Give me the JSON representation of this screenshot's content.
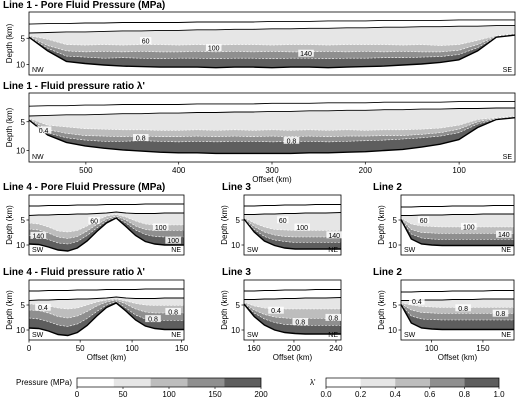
{
  "figure": {
    "colors": {
      "c0": "#ffffff",
      "c1": "#e6e6e6",
      "c2": "#bdbdbd",
      "c3": "#8f8f8f",
      "c4": "#5e5e5e"
    }
  },
  "chart_data": [
    {
      "id": "l1p",
      "type": "heatmap",
      "title": "Line 1 - Pore Fluid Pressure (MPa)",
      "ylabel": "Depth (km)",
      "ylim": [
        0,
        12
      ],
      "yticks": [
        "5",
        "10"
      ],
      "x_reversed": true,
      "xlim": [
        560,
        40
      ],
      "corner_left": "NW",
      "corner_right": "SE",
      "contour_labels": [
        "60",
        "100",
        "140"
      ],
      "boundaries": {
        "x": [
          560,
          540,
          520,
          500,
          480,
          460,
          440,
          420,
          400,
          380,
          360,
          340,
          320,
          300,
          280,
          260,
          240,
          220,
          200,
          180,
          160,
          140,
          120,
          100,
          80,
          60,
          40
        ],
        "top1": [
          2.3,
          2.2,
          2.2,
          2.1,
          2.1,
          2.0,
          2.0,
          2.0,
          2.0,
          1.9,
          1.9,
          1.9,
          1.9,
          1.8,
          1.8,
          1.8,
          1.7,
          1.7,
          1.7,
          1.6,
          1.6,
          1.6,
          1.6,
          1.5,
          1.5,
          1.5,
          1.5
        ],
        "top2": [
          4.0,
          3.9,
          3.8,
          3.8,
          3.7,
          3.6,
          3.6,
          3.5,
          3.5,
          3.4,
          3.4,
          3.3,
          3.3,
          3.2,
          3.2,
          3.1,
          3.1,
          3.0,
          3.0,
          2.9,
          2.9,
          2.8,
          2.8,
          2.7,
          2.7,
          2.6,
          2.6
        ],
        "b1": [
          4.5,
          5.2,
          6.2,
          6.3,
          6.2,
          6.3,
          6.2,
          6.2,
          6.3,
          6.2,
          6.3,
          6.2,
          6.2,
          6.3,
          6.2,
          6.2,
          6.3,
          6.2,
          6.2,
          6.2,
          6.3,
          6.2,
          6.4,
          6.2,
          5.4,
          4.5,
          4.1
        ],
        "b2": [
          4.6,
          6.4,
          7.4,
          7.6,
          7.5,
          7.6,
          7.5,
          7.6,
          7.6,
          7.5,
          7.6,
          7.5,
          7.6,
          7.5,
          7.6,
          7.6,
          7.5,
          7.6,
          7.5,
          7.6,
          7.5,
          7.6,
          7.6,
          7.3,
          6.2,
          4.6,
          4.2
        ],
        "b3": [
          4.7,
          6.9,
          8.4,
          8.6,
          8.8,
          8.7,
          8.8,
          8.9,
          8.8,
          8.8,
          8.9,
          8.8,
          8.8,
          8.9,
          8.8,
          8.8,
          8.9,
          8.8,
          8.8,
          8.7,
          8.7,
          8.6,
          8.5,
          8.1,
          6.8,
          4.7,
          4.3
        ],
        "bottom": [
          4.8,
          7.4,
          9.4,
          9.8,
          10.1,
          10.3,
          10.4,
          10.5,
          10.5,
          10.5,
          10.6,
          10.5,
          10.5,
          10.6,
          10.5,
          10.5,
          10.6,
          10.5,
          10.4,
          10.3,
          10.1,
          9.9,
          9.6,
          9.1,
          7.4,
          4.8,
          4.4
        ]
      }
    },
    {
      "id": "l1r",
      "type": "heatmap",
      "title": "Line 1 - Fluid pressure ratio λ'",
      "ylabel": "Depth (km)",
      "ylim": [
        0,
        12
      ],
      "yticks": [
        "5",
        "10"
      ],
      "xlabel": "Offset (km)",
      "x_reversed": true,
      "xlim": [
        560,
        40
      ],
      "xticks": [
        "500",
        "400",
        "300",
        "200",
        "100"
      ],
      "corner_left": "NW",
      "corner_right": "SE",
      "contour_labels": [
        "0.4",
        "0.8",
        "0.8"
      ],
      "boundaries": {
        "x": [
          560,
          540,
          520,
          500,
          480,
          460,
          440,
          420,
          400,
          380,
          360,
          340,
          320,
          300,
          280,
          260,
          240,
          220,
          200,
          180,
          160,
          140,
          120,
          100,
          80,
          60,
          40
        ],
        "top1": [
          2.3,
          2.2,
          2.2,
          2.1,
          2.1,
          2.0,
          2.0,
          2.0,
          2.0,
          1.9,
          1.9,
          1.9,
          1.9,
          1.8,
          1.8,
          1.8,
          1.7,
          1.7,
          1.7,
          1.6,
          1.6,
          1.6,
          1.6,
          1.5,
          1.5,
          1.5,
          1.5
        ],
        "top2": [
          4.0,
          3.9,
          3.8,
          3.8,
          3.7,
          3.6,
          3.6,
          3.5,
          3.5,
          3.4,
          3.4,
          3.3,
          3.3,
          3.2,
          3.2,
          3.1,
          3.1,
          3.0,
          3.0,
          2.9,
          2.9,
          2.8,
          2.8,
          2.7,
          2.7,
          2.6,
          2.6
        ],
        "b1": [
          4.4,
          5.6,
          5.9,
          6.2,
          6.3,
          6.4,
          6.4,
          6.5,
          6.5,
          6.4,
          6.5,
          6.4,
          6.5,
          6.4,
          6.5,
          6.4,
          6.5,
          6.4,
          6.5,
          6.4,
          6.4,
          6.3,
          6.1,
          5.6,
          4.6,
          4.3,
          4.0
        ],
        "b2": [
          4.5,
          6.4,
          7.0,
          7.4,
          7.5,
          7.6,
          7.5,
          7.6,
          7.6,
          7.5,
          7.6,
          7.5,
          7.6,
          7.5,
          7.6,
          7.5,
          7.6,
          7.5,
          7.5,
          7.4,
          7.4,
          7.2,
          6.9,
          6.3,
          5.0,
          4.4,
          4.1
        ],
        "b3": [
          4.6,
          6.9,
          7.8,
          8.2,
          8.4,
          8.4,
          8.3,
          8.4,
          8.5,
          8.4,
          8.5,
          8.4,
          8.4,
          8.5,
          8.4,
          8.4,
          8.5,
          8.4,
          8.3,
          8.2,
          8.0,
          7.8,
          7.5,
          6.9,
          5.4,
          4.5,
          4.2
        ],
        "bottom": [
          4.7,
          7.3,
          8.6,
          9.2,
          9.6,
          9.9,
          10.1,
          10.3,
          10.4,
          10.4,
          10.5,
          10.5,
          10.5,
          10.5,
          10.5,
          10.4,
          10.4,
          10.3,
          10.2,
          10.0,
          9.8,
          9.4,
          8.9,
          8.1,
          6.0,
          4.6,
          4.3
        ]
      }
    },
    {
      "id": "l4p",
      "type": "heatmap",
      "title": "Line 4 - Pore Fluid Pressure (MPa)",
      "ylabel": "Depth (km)",
      "ylim": [
        0,
        12
      ],
      "yticks": [
        "5",
        "10"
      ],
      "xlim": [
        0,
        160
      ],
      "corner_left": "SW",
      "corner_right": "NE",
      "contour_labels": [
        "60",
        "140",
        "100",
        "100"
      ],
      "boundaries": {
        "x": [
          0,
          10,
          20,
          30,
          40,
          50,
          60,
          70,
          80,
          90,
          100,
          110,
          120,
          130,
          140,
          150,
          160
        ],
        "top1": [
          2.2,
          2.2,
          2.1,
          2.1,
          2.1,
          2.0,
          2.0,
          2.0,
          1.9,
          1.9,
          1.9,
          1.9,
          1.8,
          1.8,
          1.8,
          1.8,
          1.8
        ],
        "top2": [
          4.1,
          4.0,
          4.0,
          3.9,
          3.9,
          3.8,
          3.8,
          3.7,
          3.6,
          3.4,
          3.6,
          3.7,
          3.7,
          3.7,
          3.6,
          3.6,
          3.6
        ],
        "b1": [
          5.6,
          5.8,
          6.4,
          7.2,
          7.4,
          7.1,
          6.2,
          5.1,
          4.2,
          3.9,
          4.4,
          5.2,
          5.8,
          6.0,
          6.0,
          6.0,
          6.0
        ],
        "b2": [
          6.8,
          7.0,
          7.6,
          8.4,
          8.7,
          8.3,
          7.2,
          5.9,
          4.8,
          4.2,
          5.0,
          6.2,
          6.9,
          7.1,
          7.1,
          7.1,
          7.1
        ],
        "b3": [
          8.1,
          8.3,
          8.9,
          9.6,
          9.8,
          9.3,
          8.1,
          6.6,
          5.2,
          4.4,
          5.6,
          7.0,
          7.9,
          8.3,
          8.4,
          8.4,
          8.4
        ],
        "bottom": [
          9.8,
          9.9,
          10.4,
          11.0,
          11.2,
          10.6,
          9.2,
          7.3,
          5.6,
          4.6,
          6.3,
          8.1,
          9.3,
          9.8,
          10.0,
          10.0,
          10.0
        ]
      }
    },
    {
      "id": "l4r",
      "type": "heatmap",
      "title": "Line 4 - Fluid pressure ratio λ'",
      "ylabel": "Depth (km)",
      "ylim": [
        0,
        12
      ],
      "yticks": [
        "5",
        "10"
      ],
      "xlabel": "Offset (km)",
      "xlim": [
        0,
        160
      ],
      "xticks": [
        "0",
        "50",
        "100",
        "150"
      ],
      "corner_left": "SW",
      "corner_right": "NE",
      "contour_labels": [
        "0.4",
        "0.8",
        "0.8"
      ],
      "boundaries": {
        "x": [
          0,
          10,
          20,
          30,
          40,
          50,
          60,
          70,
          80,
          90,
          100,
          110,
          120,
          130,
          140,
          150,
          160
        ],
        "top1": [
          2.2,
          2.2,
          2.1,
          2.1,
          2.1,
          2.0,
          2.0,
          2.0,
          1.9,
          1.9,
          1.9,
          1.9,
          1.8,
          1.8,
          1.8,
          1.8,
          1.8
        ],
        "top2": [
          4.1,
          4.0,
          4.0,
          3.9,
          3.9,
          3.8,
          3.8,
          3.7,
          3.6,
          3.4,
          3.6,
          3.7,
          3.7,
          3.7,
          3.6,
          3.6,
          3.6
        ],
        "b1": [
          4.8,
          4.9,
          5.2,
          5.6,
          5.8,
          5.6,
          5.0,
          4.4,
          4.0,
          3.8,
          4.2,
          4.7,
          5.0,
          5.1,
          5.1,
          5.1,
          5.1
        ],
        "b2": [
          6.0,
          6.1,
          6.6,
          7.3,
          7.6,
          7.2,
          6.3,
          5.2,
          4.4,
          4.0,
          4.8,
          5.8,
          6.4,
          6.6,
          6.6,
          6.6,
          6.6
        ],
        "b3": [
          7.6,
          7.8,
          8.3,
          9.0,
          9.3,
          8.8,
          7.7,
          6.3,
          5.0,
          4.3,
          5.6,
          7.0,
          7.8,
          8.1,
          8.1,
          8.1,
          8.1
        ],
        "bottom": [
          9.6,
          9.7,
          10.2,
          10.9,
          11.1,
          10.5,
          9.1,
          7.2,
          5.5,
          4.6,
          6.2,
          8.0,
          9.2,
          9.7,
          9.9,
          9.9,
          9.9
        ]
      }
    },
    {
      "id": "l3p",
      "type": "heatmap",
      "title": "Line 3",
      "ylabel": "Depth (km)",
      "ylim": [
        0,
        12
      ],
      "yticks": [
        "5",
        "10"
      ],
      "xlim": [
        150,
        245
      ],
      "corner_left": "SW",
      "corner_right": "NE",
      "contour_labels": [
        "60",
        "100",
        "140"
      ],
      "boundaries": {
        "x": [
          150,
          160,
          170,
          180,
          190,
          200,
          210,
          220,
          230,
          245
        ],
        "top1": [
          2.2,
          2.2,
          2.1,
          2.1,
          2.0,
          2.0,
          2.0,
          1.9,
          1.9,
          1.9
        ],
        "top2": [
          3.9,
          3.9,
          3.8,
          3.8,
          3.7,
          3.7,
          3.6,
          3.6,
          3.6,
          3.5
        ],
        "b1": [
          4.5,
          5.6,
          6.4,
          6.9,
          7.0,
          7.1,
          7.1,
          7.1,
          7.1,
          7.1
        ],
        "b2": [
          4.6,
          6.3,
          7.4,
          8.0,
          8.3,
          8.4,
          8.4,
          8.4,
          8.4,
          8.4
        ],
        "b3": [
          4.7,
          6.9,
          8.3,
          9.0,
          9.3,
          9.5,
          9.5,
          9.5,
          9.5,
          9.5
        ],
        "bottom": [
          4.8,
          7.4,
          9.2,
          10.1,
          10.6,
          10.8,
          10.8,
          10.8,
          10.8,
          10.8
        ]
      }
    },
    {
      "id": "l3r",
      "type": "heatmap",
      "title": "Line 3",
      "ylabel": "Depth (km)",
      "ylim": [
        0,
        12
      ],
      "yticks": [
        "5",
        "10"
      ],
      "xlabel": "Offset (km)",
      "xlim": [
        150,
        245
      ],
      "xticks": [
        "160",
        "200",
        "240"
      ],
      "corner_left": "SW",
      "corner_right": "NE",
      "contour_labels": [
        "0.4",
        "0.8",
        "0.8"
      ],
      "boundaries": {
        "x": [
          150,
          160,
          170,
          180,
          190,
          200,
          210,
          220,
          230,
          245
        ],
        "top1": [
          2.2,
          2.2,
          2.1,
          2.1,
          2.0,
          2.0,
          2.0,
          1.9,
          1.9,
          1.9
        ],
        "top2": [
          3.9,
          3.9,
          3.8,
          3.8,
          3.7,
          3.7,
          3.6,
          3.6,
          3.6,
          3.5
        ],
        "b1": [
          4.4,
          5.2,
          5.6,
          5.8,
          5.8,
          5.8,
          5.8,
          5.8,
          5.8,
          5.8
        ],
        "b2": [
          4.5,
          6.0,
          6.9,
          7.4,
          7.6,
          7.7,
          7.7,
          7.7,
          7.7,
          7.7
        ],
        "b3": [
          4.6,
          6.6,
          7.8,
          8.5,
          8.9,
          9.0,
          9.1,
          9.1,
          9.1,
          9.1
        ],
        "bottom": [
          4.8,
          7.3,
          9.0,
          10.0,
          10.5,
          10.7,
          10.8,
          10.8,
          10.8,
          10.8
        ]
      }
    },
    {
      "id": "l2p",
      "type": "heatmap",
      "title": "Line 2",
      "ylabel": "Depth (km)",
      "ylim": [
        0,
        12
      ],
      "yticks": [
        "5",
        "10"
      ],
      "xlim": [
        70,
        180
      ],
      "corner_left": "SW",
      "corner_right": "NE",
      "contour_labels": [
        "60",
        "100",
        "140"
      ],
      "boundaries": {
        "x": [
          70,
          80,
          90,
          100,
          110,
          120,
          130,
          140,
          150,
          160,
          170,
          180
        ],
        "top1": [
          2.4,
          2.4,
          2.3,
          2.3,
          2.3,
          2.2,
          2.2,
          2.2,
          2.2,
          2.1,
          2.1,
          2.1
        ],
        "top2": [
          4.1,
          4.1,
          4.0,
          4.0,
          4.0,
          3.9,
          3.9,
          3.9,
          3.8,
          3.8,
          3.8,
          3.8
        ],
        "b1": [
          4.6,
          5.8,
          6.2,
          6.3,
          6.4,
          6.4,
          6.4,
          6.4,
          6.4,
          6.4,
          6.4,
          6.4
        ],
        "b2": [
          4.7,
          6.9,
          7.5,
          7.6,
          7.7,
          7.7,
          7.7,
          7.7,
          7.7,
          7.7,
          7.7,
          7.7
        ],
        "b3": [
          4.8,
          7.8,
          8.6,
          8.8,
          8.9,
          8.9,
          8.9,
          8.9,
          8.9,
          8.9,
          8.9,
          8.9
        ],
        "bottom": [
          4.9,
          8.8,
          9.8,
          10.0,
          10.1,
          10.1,
          10.1,
          10.1,
          10.1,
          10.1,
          10.1,
          10.1
        ]
      }
    },
    {
      "id": "l2r",
      "type": "heatmap",
      "title": "Line 2",
      "ylabel": "Depth (km)",
      "ylim": [
        0,
        12
      ],
      "yticks": [
        "5",
        "10"
      ],
      "xlabel": "Offset (km)",
      "xlim": [
        70,
        180
      ],
      "xticks": [
        "100",
        "150"
      ],
      "corner_left": "SW",
      "corner_right": "NE",
      "contour_labels": [
        "0.4",
        "0.8",
        "0.8"
      ],
      "boundaries": {
        "x": [
          70,
          80,
          90,
          100,
          110,
          120,
          130,
          140,
          150,
          160,
          170,
          180
        ],
        "top1": [
          2.4,
          2.4,
          2.3,
          2.3,
          2.3,
          2.2,
          2.2,
          2.2,
          2.2,
          2.1,
          2.1,
          2.1
        ],
        "top2": [
          4.1,
          4.1,
          4.0,
          4.0,
          4.0,
          3.9,
          3.9,
          3.9,
          3.8,
          3.8,
          3.8,
          3.8
        ],
        "b1": [
          4.6,
          5.0,
          5.3,
          5.4,
          5.5,
          5.5,
          5.5,
          5.5,
          5.5,
          5.5,
          5.5,
          5.5
        ],
        "b2": [
          4.7,
          6.0,
          6.5,
          6.6,
          6.7,
          6.7,
          6.7,
          6.7,
          6.7,
          6.7,
          6.7,
          6.7
        ],
        "b3": [
          4.8,
          7.2,
          7.8,
          7.9,
          8.0,
          8.0,
          8.0,
          8.0,
          8.0,
          8.0,
          8.0,
          8.0
        ],
        "bottom": [
          4.9,
          8.6,
          9.6,
          9.8,
          9.9,
          9.9,
          9.9,
          9.9,
          9.9,
          9.9,
          9.9,
          9.9
        ]
      }
    },
    {
      "id": "pbar",
      "type": "colorbar",
      "title": "Pressure (MPa)",
      "ticks": [
        "0",
        "50",
        "100",
        "150",
        "200"
      ]
    },
    {
      "id": "rbar",
      "type": "colorbar",
      "title": "λ'",
      "ticks": [
        "0.0",
        "0.2",
        "0.4",
        "0.6",
        "0.8",
        "1.0"
      ]
    }
  ]
}
